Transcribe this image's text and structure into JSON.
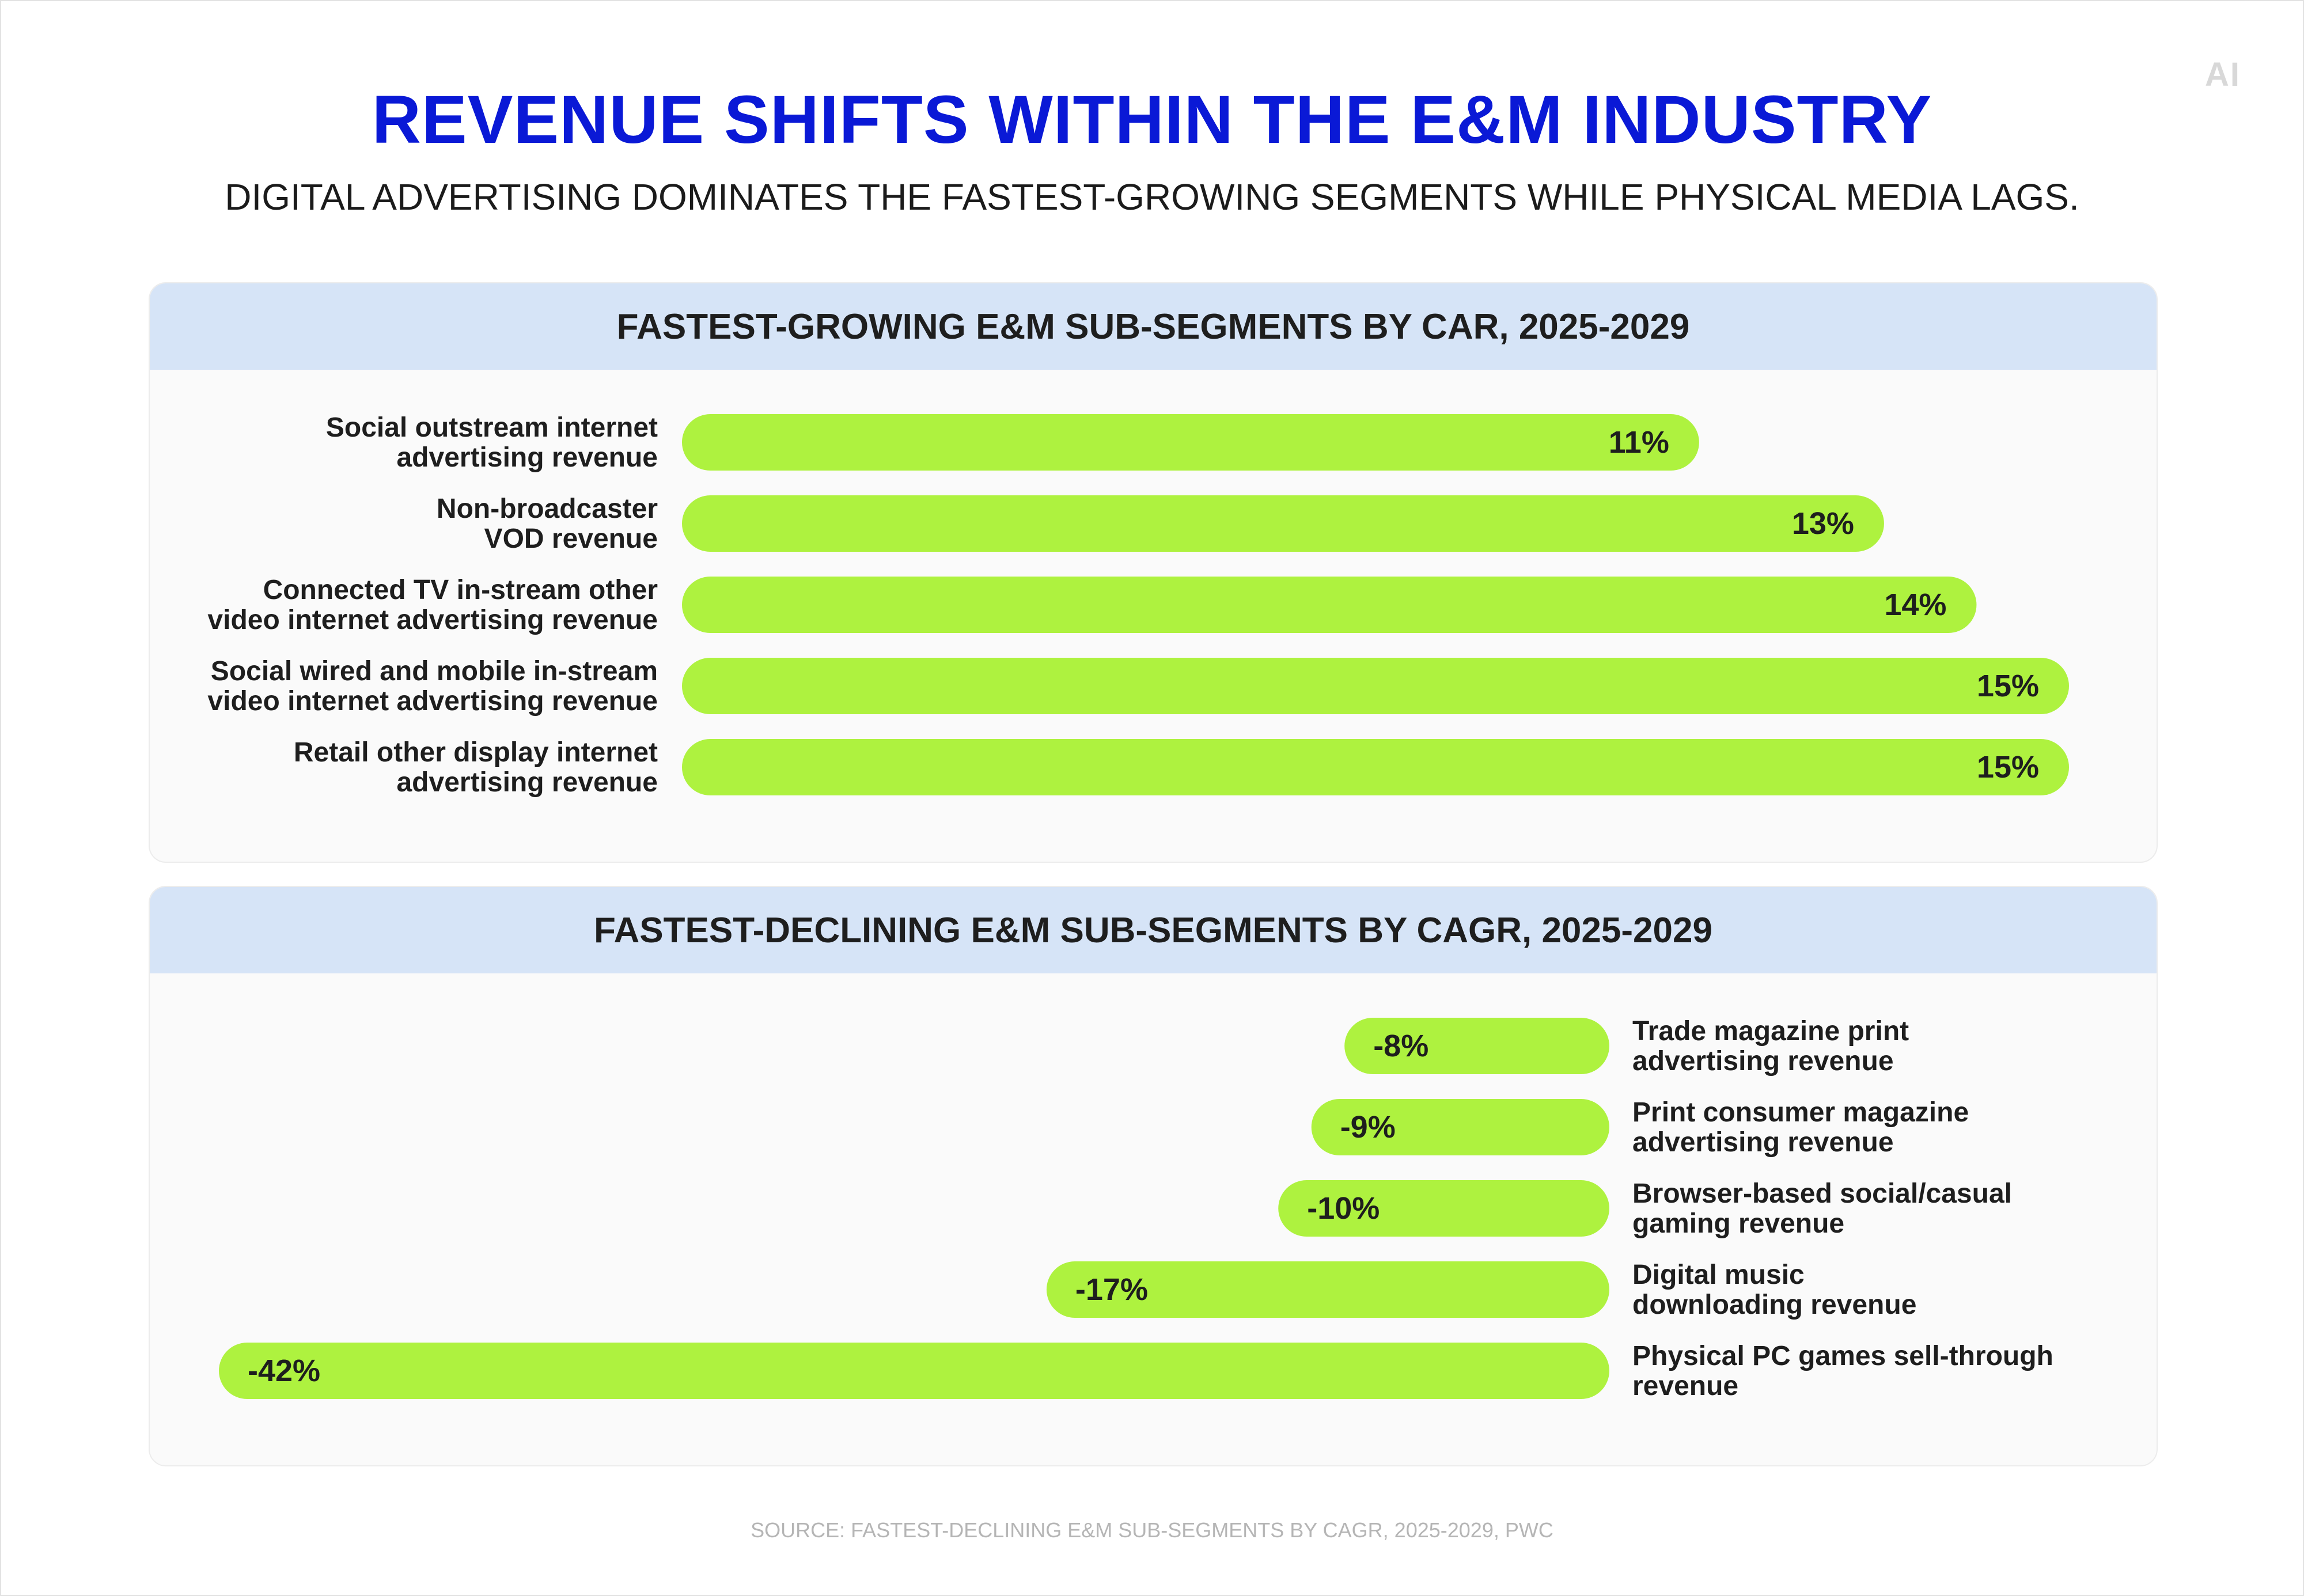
{
  "brand": {
    "logo_text": "AI"
  },
  "header": {
    "title": "REVENUE SHIFTS WITHIN THE E&M INDUSTRY",
    "subtitle": "DIGITAL ADVERTISING DOMINATES THE FASTEST-GROWING SEGMENTS WHILE PHYSICAL MEDIA LAGS."
  },
  "colors": {
    "title": "#0a19d6",
    "bar": "#aef23f",
    "panel_header": "#d6e4f7",
    "panel_bg": "#fafafa"
  },
  "chart_data": [
    {
      "type": "bar",
      "orientation": "horizontal",
      "title": "FASTEST-GROWING E&M SUB-SEGMENTS BY CAR, 2025-2029",
      "categories": [
        [
          "Social outstream internet",
          "advertising revenue"
        ],
        [
          "Non-broadcaster",
          "VOD revenue"
        ],
        [
          "Connected TV in-stream other",
          "video internet advertising revenue"
        ],
        [
          "Social wired and mobile in-stream",
          "video internet advertising revenue"
        ],
        [
          "Retail other display internet",
          "advertising revenue"
        ]
      ],
      "values": [
        11,
        13,
        14,
        15,
        15
      ],
      "value_labels": [
        "11%",
        "13%",
        "14%",
        "15%",
        "15%"
      ],
      "unit": "%",
      "xlim": [
        0,
        15
      ]
    },
    {
      "type": "bar",
      "orientation": "horizontal",
      "title": "FASTEST-DECLINING E&M SUB-SEGMENTS BY CAGR, 2025-2029",
      "categories": [
        [
          "Trade magazine print",
          "advertising revenue"
        ],
        [
          "Print consumer magazine",
          "advertising revenue"
        ],
        [
          "Browser-based social/casual",
          "gaming revenue"
        ],
        [
          "Digital music",
          "downloading revenue"
        ],
        [
          "Physical PC games sell-through",
          "revenue"
        ]
      ],
      "values": [
        -8,
        -9,
        -10,
        -17,
        -42
      ],
      "value_labels": [
        "-8%",
        "-9%",
        "-10%",
        "-17%",
        "-42%"
      ],
      "unit": "%",
      "xlim": [
        -42,
        0
      ]
    }
  ],
  "footer": {
    "source": "SOURCE: FASTEST-DECLINING E&M SUB-SEGMENTS BY CAGR, 2025-2029, PWC"
  }
}
